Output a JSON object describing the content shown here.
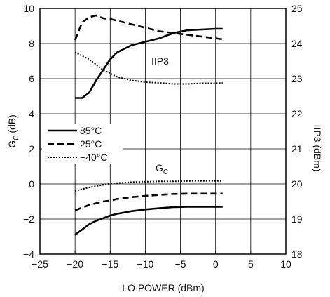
{
  "chart_data": {
    "type": "line",
    "xlabel": "LO POWER (dBm)",
    "ylabel_left": "G_C (dB)",
    "ylabel_left_main": "G",
    "ylabel_left_sub": "C",
    "ylabel_left_unit": "(dB)",
    "ylabel_right": "IIP3 (dBm)",
    "xlim": [
      -25,
      10
    ],
    "ylim_left": [
      -4,
      10
    ],
    "ylim_right": [
      18,
      25
    ],
    "xticks": [
      "−25",
      "−20",
      "−15",
      "−10",
      "−5",
      "0",
      "5",
      "10"
    ],
    "yticks_left": [
      "−4",
      "−2",
      "0",
      "2",
      "4",
      "6",
      "8",
      "10"
    ],
    "yticks_right": [
      "18",
      "19",
      "20",
      "21",
      "22",
      "23",
      "24",
      "25"
    ],
    "grid": true,
    "legend": {
      "placement": "middle-left",
      "entries": [
        {
          "name": "85°C",
          "style": "solid"
        },
        {
          "name": "25°C",
          "style": "dashed"
        },
        {
          "name": "−40°C",
          "style": "dotted"
        }
      ]
    },
    "annotations": {
      "iip3": "IIP3",
      "gc_main": "G",
      "gc_sub": "C"
    },
    "series": [
      {
        "name": "85°C",
        "metric": "IIP3",
        "axis": "right",
        "style": "solid",
        "x": [
          -20,
          -19,
          -18,
          -17,
          -16,
          -15,
          -14,
          -12,
          -10,
          -8,
          -6,
          -4,
          -2,
          0,
          1
        ],
        "y": [
          22.45,
          22.45,
          22.6,
          22.95,
          23.25,
          23.55,
          23.75,
          23.95,
          24.05,
          24.15,
          24.3,
          24.38,
          24.4,
          24.42,
          24.42
        ]
      },
      {
        "name": "25°C",
        "metric": "IIP3",
        "axis": "right",
        "style": "dashed",
        "x": [
          -20,
          -19,
          -18,
          -17,
          -16,
          -15,
          -14,
          -12,
          -10,
          -8,
          -6,
          -4,
          -2,
          0,
          1
        ],
        "y": [
          24.1,
          24.6,
          24.75,
          24.8,
          24.72,
          24.7,
          24.65,
          24.55,
          24.45,
          24.35,
          24.3,
          24.25,
          24.2,
          24.15,
          24.12
        ]
      },
      {
        "name": "−40°C",
        "metric": "IIP3",
        "axis": "right",
        "style": "dotted",
        "x": [
          -20,
          -19,
          -18,
          -17,
          -16,
          -15,
          -14,
          -12,
          -10,
          -8,
          -6,
          -4,
          -2,
          0,
          1
        ],
        "y": [
          23.75,
          23.65,
          23.55,
          23.4,
          23.25,
          23.15,
          23.05,
          22.95,
          22.9,
          22.88,
          22.85,
          22.85,
          22.87,
          22.87,
          22.88
        ]
      },
      {
        "name": "85°C",
        "metric": "GC",
        "axis": "left",
        "style": "solid",
        "x": [
          -20,
          -19,
          -18,
          -17,
          -16,
          -15,
          -14,
          -12,
          -10,
          -8,
          -6,
          -4,
          -2,
          0,
          1
        ],
        "y": [
          -2.9,
          -2.6,
          -2.3,
          -2.1,
          -1.95,
          -1.8,
          -1.7,
          -1.55,
          -1.45,
          -1.38,
          -1.32,
          -1.3,
          -1.3,
          -1.3,
          -1.3
        ]
      },
      {
        "name": "25°C",
        "metric": "GC",
        "axis": "left",
        "style": "dashed",
        "x": [
          -20,
          -19,
          -18,
          -17,
          -16,
          -15,
          -14,
          -12,
          -10,
          -8,
          -6,
          -4,
          -2,
          0,
          1
        ],
        "y": [
          -1.5,
          -1.35,
          -1.2,
          -1.1,
          -1.0,
          -0.95,
          -0.85,
          -0.75,
          -0.68,
          -0.62,
          -0.57,
          -0.55,
          -0.55,
          -0.55,
          -0.55
        ]
      },
      {
        "name": "−40°C",
        "metric": "GC",
        "axis": "left",
        "style": "dotted",
        "x": [
          -20,
          -19,
          -18,
          -17,
          -16,
          -15,
          -14,
          -12,
          -10,
          -8,
          -6,
          -4,
          -2,
          0,
          1
        ],
        "y": [
          -0.4,
          -0.3,
          -0.2,
          -0.12,
          -0.05,
          0.02,
          0.05,
          0.1,
          0.13,
          0.15,
          0.15,
          0.17,
          0.17,
          0.17,
          0.17
        ]
      }
    ]
  }
}
